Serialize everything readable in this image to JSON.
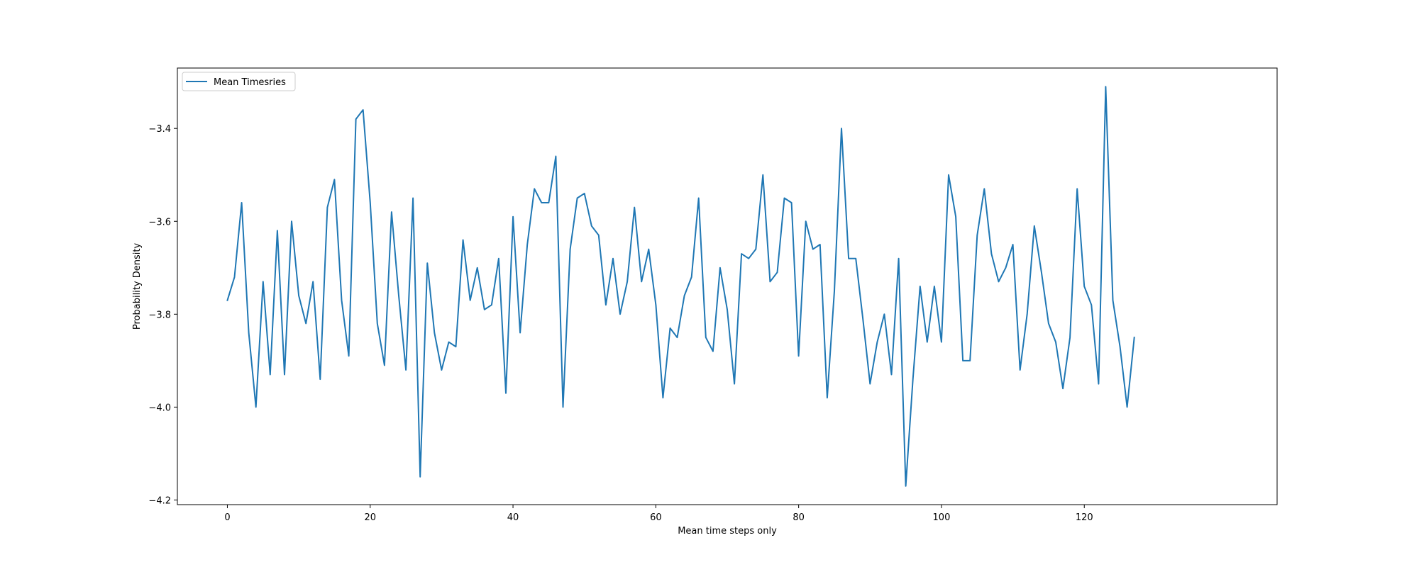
{
  "chart_data": {
    "type": "line",
    "title": "",
    "xlabel": "Mean time steps only",
    "ylabel": "Probability Density",
    "xlim": [
      -7,
      147
    ],
    "ylim": [
      -4.21,
      -3.27
    ],
    "xticks": [
      0,
      20,
      40,
      60,
      80,
      100,
      120
    ],
    "yticks": [
      -4.2,
      -4.0,
      -3.8,
      -3.6,
      -3.4
    ],
    "ytick_labels": [
      "−4.2",
      "−4.0",
      "−3.8",
      "−3.6",
      "−3.4"
    ],
    "grid": false,
    "legend": {
      "location": "top-left"
    },
    "series": [
      {
        "name": "Mean Timesries",
        "color": "#1f77b4",
        "x": [
          0,
          1,
          2,
          3,
          4,
          5,
          6,
          7,
          8,
          9,
          10,
          11,
          12,
          13,
          14,
          15,
          16,
          17,
          18,
          19,
          20,
          21,
          22,
          23,
          24,
          25,
          26,
          27,
          28,
          29,
          30,
          31,
          32,
          33,
          34,
          35,
          36,
          37,
          38,
          39,
          40,
          41,
          42,
          43,
          44,
          45,
          46,
          47,
          48,
          49,
          50,
          51,
          52,
          53,
          54,
          55,
          56,
          57,
          58,
          59,
          60,
          61,
          62,
          63,
          64,
          65,
          66,
          67,
          68,
          69,
          70,
          71,
          72,
          73,
          74,
          75,
          76,
          77,
          78,
          79,
          80,
          81,
          82,
          83,
          84,
          85,
          86,
          87,
          88,
          89,
          90,
          91,
          92,
          93,
          94,
          95,
          96,
          97,
          98,
          99,
          100,
          101,
          102,
          103,
          104,
          105,
          106,
          107,
          108,
          109,
          110,
          111,
          112,
          113,
          114,
          115,
          116,
          117,
          118,
          119,
          120,
          121,
          122,
          123,
          124,
          125,
          126,
          127
        ],
        "values": [
          -3.77,
          -3.72,
          -3.56,
          -3.84,
          -4.0,
          -3.73,
          -3.93,
          -3.62,
          -3.93,
          -3.6,
          -3.76,
          -3.82,
          -3.73,
          -3.94,
          -3.57,
          -3.51,
          -3.77,
          -3.89,
          -3.38,
          -3.36,
          -3.56,
          -3.82,
          -3.91,
          -3.58,
          -3.76,
          -3.92,
          -3.55,
          -4.15,
          -3.69,
          -3.84,
          -3.92,
          -3.86,
          -3.87,
          -3.64,
          -3.77,
          -3.7,
          -3.79,
          -3.78,
          -3.68,
          -3.97,
          -3.59,
          -3.84,
          -3.65,
          -3.53,
          -3.56,
          -3.56,
          -3.46,
          -4.0,
          -3.66,
          -3.55,
          -3.54,
          -3.61,
          -3.63,
          -3.78,
          -3.68,
          -3.8,
          -3.73,
          -3.57,
          -3.73,
          -3.66,
          -3.78,
          -3.98,
          -3.83,
          -3.85,
          -3.76,
          -3.72,
          -3.55,
          -3.85,
          -3.88,
          -3.7,
          -3.79,
          -3.95,
          -3.67,
          -3.68,
          -3.66,
          -3.5,
          -3.73,
          -3.71,
          -3.55,
          -3.56,
          -3.89,
          -3.6,
          -3.66,
          -3.65,
          -3.98,
          -3.75,
          -3.4,
          -3.68,
          -3.68,
          -3.81,
          -3.95,
          -3.86,
          -3.8,
          -3.93,
          -3.68,
          -4.17,
          -3.94,
          -3.74,
          -3.86,
          -3.74,
          -3.86,
          -3.5,
          -3.59,
          -3.9,
          -3.9,
          -3.63,
          -3.53,
          -3.67,
          -3.73,
          -3.7,
          -3.65,
          -3.92,
          -3.8,
          -3.61,
          -3.71,
          -3.82,
          -3.86,
          -3.96,
          -3.85,
          -3.53,
          -3.74,
          -3.78,
          -3.95,
          -3.31,
          -3.77,
          -3.87,
          -4.0,
          -3.85
        ]
      }
    ]
  }
}
